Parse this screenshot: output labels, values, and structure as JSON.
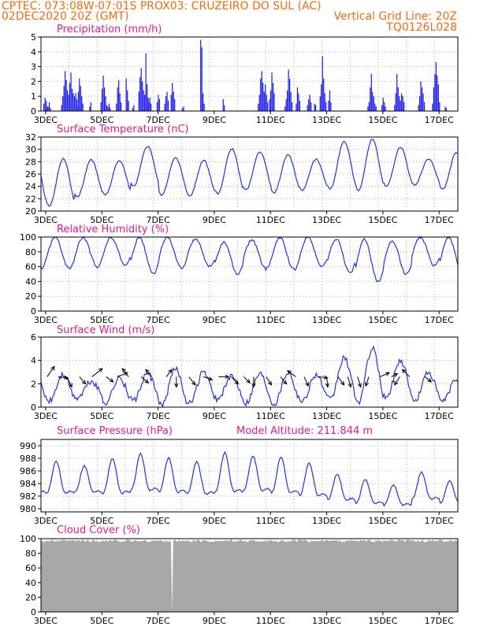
{
  "header": {
    "line1": "CPTEC:   073:08W-07:01S   PROX03: CRUZEIRO DO SUL (AC)",
    "line2_left": "02DEC2020 20Z (GMT)",
    "line2_right": "Vertical Grid Line: 20Z",
    "line3_right": "TQ0126L028"
  },
  "colors": {
    "header": "#f26b0c",
    "title": "#e5198a",
    "series": "#2233dd",
    "bars": "#1a1aee",
    "cloud": "#a8a8a8",
    "grid": "#999999"
  },
  "chart_data": [
    {
      "id": "precip",
      "type": "bar",
      "title": "Precipitation (mm/h)",
      "ylim": [
        0,
        5
      ],
      "yticks": [
        0,
        1,
        2,
        3,
        4,
        5
      ],
      "xlim_days": [
        2.833,
        17.667
      ],
      "xticks": [
        "3DEC",
        "5DEC",
        "7DEC",
        "9DEC",
        "11DEC",
        "13DEC",
        "15DEC",
        "17DEC"
      ],
      "events": [
        {
          "x": 2.92,
          "values": [
            0.5,
            0.9,
            0.7,
            0.3
          ]
        },
        {
          "x": 3.07,
          "values": [
            0.3,
            0.6,
            0.2
          ]
        },
        {
          "x": 3.55,
          "values": [
            0.4,
            1.0,
            1.7,
            2.7,
            2.1,
            1.4,
            1.1,
            1.9,
            2.6,
            1.5,
            1.2,
            1.0,
            1.2,
            0.8
          ]
        },
        {
          "x": 4.1,
          "values": [
            0.3,
            1.3,
            2.2,
            1.7,
            1.0,
            0.5
          ]
        },
        {
          "x": 4.55,
          "values": [
            0.3,
            0.6
          ]
        },
        {
          "x": 4.95,
          "values": [
            0.6,
            1.5,
            2.4,
            1.6,
            1.0,
            0.4
          ]
        },
        {
          "x": 5.2,
          "values": [
            0.3,
            0.5,
            0.2
          ]
        },
        {
          "x": 5.5,
          "values": [
            0.5,
            1.6,
            2.1,
            1.2,
            0.6
          ]
        },
        {
          "x": 5.85,
          "values": [
            2.2,
            1.4,
            0.7
          ]
        },
        {
          "x": 6.08,
          "values": [
            0.2,
            0.4
          ]
        },
        {
          "x": 6.3,
          "values": [
            1.3,
            2.3,
            2.9,
            2.0,
            1.4,
            1.1,
            3.9,
            1.8,
            0.9
          ]
        },
        {
          "x": 6.65,
          "values": [
            0.6,
            0.9,
            0.5
          ]
        },
        {
          "x": 6.95,
          "values": [
            0.6,
            1.1,
            0.8
          ]
        },
        {
          "x": 7.22,
          "values": [
            0.5,
            1.0,
            1.3,
            0.7
          ]
        },
        {
          "x": 7.45,
          "values": [
            1.1,
            1.9,
            1.3,
            0.8
          ]
        },
        {
          "x": 7.85,
          "values": [
            0.2,
            0.3
          ]
        },
        {
          "x": 8.5,
          "values": [
            4.8,
            4.3,
            1.2,
            0.5
          ]
        },
        {
          "x": 9.3,
          "values": [
            0.8,
            0.4
          ]
        },
        {
          "x": 10.55,
          "values": [
            0.5,
            1.1,
            2.2,
            2.7,
            1.9,
            1.3,
            1.8,
            1.1,
            0.6
          ]
        },
        {
          "x": 10.95,
          "values": [
            0.8,
            1.4,
            2.6,
            1.9,
            1.2
          ]
        },
        {
          "x": 11.5,
          "values": [
            0.3,
            0.8,
            1.4,
            2.8,
            2.2,
            1.3,
            0.6
          ]
        },
        {
          "x": 11.9,
          "values": [
            0.5,
            1.6,
            1.2,
            0.7
          ]
        },
        {
          "x": 12.3,
          "values": [
            0.4,
            0.8,
            1.1,
            0.6
          ]
        },
        {
          "x": 12.55,
          "values": [
            0.5,
            0.4
          ]
        },
        {
          "x": 12.75,
          "values": [
            1.0,
            1.8,
            3.7,
            2.2,
            1.2,
            0.6
          ]
        },
        {
          "x": 13.05,
          "values": [
            0.7,
            1.4,
            0.6
          ]
        },
        {
          "x": 14.45,
          "values": [
            0.3,
            0.6,
            1.6,
            2.5,
            1.3,
            1.0,
            0.5,
            0.3
          ]
        },
        {
          "x": 14.95,
          "values": [
            0.4,
            0.9,
            0.6,
            0.3
          ]
        },
        {
          "x": 15.4,
          "values": [
            0.4,
            1.2,
            2.5,
            1.6,
            1.0,
            0.7,
            1.2,
            1.0,
            0.6
          ]
        },
        {
          "x": 16.25,
          "values": [
            0.4,
            1.0,
            2.0,
            1.6,
            1.2,
            0.6
          ]
        },
        {
          "x": 16.75,
          "values": [
            0.5,
            1.6,
            2.5,
            3.3,
            2.4,
            1.8,
            0.6
          ]
        },
        {
          "x": 17.2,
          "values": [
            0.3,
            0.2
          ]
        }
      ]
    },
    {
      "id": "temp",
      "type": "line",
      "title": "Surface Temperature (nC)",
      "ylim": [
        20,
        32
      ],
      "yticks": [
        20,
        22,
        24,
        26,
        28,
        30,
        32
      ],
      "xlim_days": [
        2.833,
        17.667
      ],
      "xticks": [
        "3DEC",
        "5DEC",
        "7DEC",
        "9DEC",
        "11DEC",
        "13DEC",
        "15DEC",
        "17DEC"
      ],
      "days": [
        3,
        4,
        5,
        6,
        7,
        8,
        9,
        10,
        11,
        12,
        13,
        14,
        15,
        16,
        17
      ],
      "max": [
        28.5,
        28.3,
        28.2,
        30.5,
        28.6,
        28.2,
        30.1,
        29.6,
        29.1,
        28.4,
        31.3,
        31.6,
        30.4,
        28.4,
        29.5
      ],
      "min": [
        20.8,
        22.3,
        22.7,
        24.0,
        22.6,
        22.4,
        22.8,
        23.4,
        23.0,
        23.4,
        23.6,
        23.4,
        24.0,
        24.2,
        23.5
      ]
    },
    {
      "id": "rh",
      "type": "line",
      "title": "Relative Humidity (%)",
      "ylim": [
        0,
        100
      ],
      "yticks": [
        0,
        20,
        40,
        60,
        80,
        100
      ],
      "xlim_days": [
        2.833,
        17.667
      ],
      "xticks": [
        "3DEC",
        "5DEC",
        "7DEC",
        "9DEC",
        "11DEC",
        "13DEC",
        "15DEC",
        "17DEC"
      ],
      "days": [
        3,
        4,
        5,
        6,
        7,
        8,
        9,
        10,
        11,
        12,
        13,
        14,
        15,
        16,
        17
      ],
      "max": [
        100,
        99,
        100,
        100,
        100,
        98,
        93,
        96,
        99,
        100,
        98,
        97,
        94,
        100,
        100
      ],
      "min": [
        57,
        60,
        62,
        50,
        58,
        60,
        50,
        57,
        56,
        60,
        52,
        40,
        50,
        62,
        50
      ]
    },
    {
      "id": "wind",
      "type": "line",
      "title": "Surface Wind (m/s)",
      "ylim": [
        0,
        6
      ],
      "yticks": [
        0,
        2,
        4,
        6
      ],
      "xlim_days": [
        2.833,
        17.667
      ],
      "xticks": [
        "3DEC",
        "5DEC",
        "7DEC",
        "9DEC",
        "11DEC",
        "13DEC",
        "15DEC",
        "17DEC"
      ],
      "days": [
        3,
        4,
        5,
        6,
        7,
        8,
        9,
        10,
        11,
        12,
        13,
        14,
        15,
        16,
        17
      ],
      "max": [
        2.8,
        2.2,
        2.5,
        2.8,
        3.3,
        3.0,
        2.6,
        2.9,
        3.0,
        2.8,
        4.2,
        5.0,
        4.0,
        3.0,
        2.4
      ],
      "min": [
        0.5,
        0.8,
        0.4,
        0.6,
        0.1,
        0.3,
        0.7,
        0.4,
        0.3,
        0.5,
        0.6,
        0.4,
        0.8,
        0.5,
        0.5
      ],
      "arrows": [
        {
          "x": 3.05,
          "u": 0.7,
          "v": 1.0
        },
        {
          "x": 3.45,
          "u": 0.9,
          "v": -0.1
        },
        {
          "x": 3.75,
          "u": 0.5,
          "v": -1.0
        },
        {
          "x": 4.2,
          "u": 0.6,
          "v": -0.7
        },
        {
          "x": 4.65,
          "u": 1.0,
          "v": 0.8
        },
        {
          "x": 5.15,
          "u": 0.7,
          "v": -0.5
        },
        {
          "x": 5.55,
          "u": 1.0,
          "v": 0.4
        },
        {
          "x": 5.95,
          "u": -0.6,
          "v": 0.8
        },
        {
          "x": 6.4,
          "u": 0.7,
          "v": -0.6
        },
        {
          "x": 6.78,
          "u": -0.6,
          "v": 0.7
        },
        {
          "x": 7.3,
          "u": 0.5,
          "v": 0.7
        },
        {
          "x": 7.65,
          "u": 0.0,
          "v": -1.0
        },
        {
          "x": 8.1,
          "u": 0.6,
          "v": -0.8
        },
        {
          "x": 8.6,
          "u": 0.9,
          "v": -0.3
        },
        {
          "x": 9.15,
          "u": 1.0,
          "v": 0.0
        },
        {
          "x": 9.6,
          "u": 0.7,
          "v": -0.7
        },
        {
          "x": 10.05,
          "u": 0.6,
          "v": -0.6
        },
        {
          "x": 10.4,
          "u": 0.0,
          "v": -1.0
        },
        {
          "x": 10.85,
          "u": 0.5,
          "v": -0.8
        },
        {
          "x": 11.35,
          "u": 0.6,
          "v": -0.7
        },
        {
          "x": 11.9,
          "u": -0.8,
          "v": 0.6
        },
        {
          "x": 12.2,
          "u": 0.4,
          "v": -0.9
        },
        {
          "x": 12.7,
          "u": 0.9,
          "v": -0.1
        },
        {
          "x": 13.0,
          "u": 0.1,
          "v": -1.0
        },
        {
          "x": 13.4,
          "u": 0.6,
          "v": -0.8
        },
        {
          "x": 13.75,
          "u": 0.3,
          "v": -1.0
        },
        {
          "x": 14.1,
          "u": 0.3,
          "v": -1.0
        },
        {
          "x": 14.5,
          "u": -0.3,
          "v": -0.9
        },
        {
          "x": 14.9,
          "u": 0.9,
          "v": 0.4
        },
        {
          "x": 15.3,
          "u": 0.6,
          "v": 0.3
        },
        {
          "x": 15.6,
          "u": -0.5,
          "v": -0.8
        },
        {
          "x": 15.95,
          "u": -0.7,
          "v": 0.7
        },
        {
          "x": 16.5,
          "u": 0.6,
          "v": -0.5
        }
      ]
    },
    {
      "id": "pres",
      "type": "line",
      "title": "Surface Pressure (hPa)",
      "subtitle": "Model Altitude: 211.844 m",
      "ylim": [
        979.5,
        991
      ],
      "yticks": [
        980,
        982,
        984,
        986,
        988,
        990
      ],
      "xlim_days": [
        2.833,
        17.667
      ],
      "xticks": [
        "3DEC",
        "5DEC",
        "7DEC",
        "9DEC",
        "11DEC",
        "13DEC",
        "15DEC",
        "17DEC"
      ],
      "days": [
        3,
        4,
        5,
        6,
        7,
        8,
        9,
        10,
        11,
        12,
        13,
        14,
        15,
        16,
        17
      ],
      "max": [
        987.5,
        986.8,
        988.0,
        988.7,
        988.1,
        987.5,
        988.9,
        988.4,
        988.2,
        987.3,
        985.5,
        984.7,
        983.8,
        985.8,
        984.5
      ],
      "min": [
        980.8,
        981.2,
        980.6,
        981.0,
        980.8,
        980.6,
        980.6,
        981.0,
        980.6,
        980.3,
        980.0,
        979.5,
        979.5,
        980.1,
        979.7
      ]
    },
    {
      "id": "cloud",
      "type": "area",
      "title": "Cloud Cover (%)",
      "ylim": [
        0,
        100
      ],
      "yticks": [
        0,
        20,
        40,
        60,
        80,
        100
      ],
      "xlim_days": [
        2.833,
        17.667
      ],
      "xticks": [
        "3DEC",
        "5DEC",
        "7DEC",
        "9DEC",
        "11DEC",
        "13DEC",
        "15DEC",
        "17DEC"
      ],
      "value": 97,
      "gap_at": 7.5
    }
  ]
}
